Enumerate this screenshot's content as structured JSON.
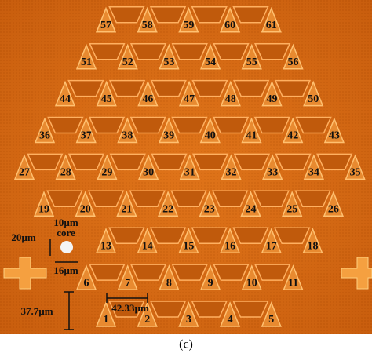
{
  "rows": [
    [
      "1",
      "2",
      "3",
      "4",
      "5"
    ],
    [
      "6",
      "7",
      "8",
      "9",
      "10",
      "11"
    ],
    [
      "13",
      "14",
      "15",
      "16",
      "17",
      "18"
    ],
    [
      "19",
      "20",
      "21",
      "22",
      "23",
      "24",
      "25",
      "26"
    ],
    [
      "27",
      "28",
      "29",
      "30",
      "31",
      "32",
      "33",
      "34",
      "35"
    ],
    [
      "36",
      "37",
      "38",
      "39",
      "40",
      "41",
      "42",
      "43"
    ],
    [
      "44",
      "45",
      "46",
      "47",
      "48",
      "49",
      "50"
    ],
    [
      "51",
      "52",
      "53",
      "54",
      "55",
      "56"
    ],
    [
      "57",
      "58",
      "59",
      "60",
      "61"
    ]
  ],
  "annotations": {
    "core_size": "10µm",
    "core": "core",
    "core_height": "20µm",
    "core_width": "16µm",
    "row_pitch": "37.7µm",
    "column_pitch": "42.33µm"
  },
  "caption": "(c)"
}
